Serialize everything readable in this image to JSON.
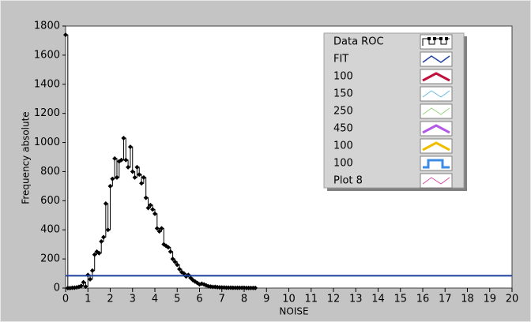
{
  "chart_data": {
    "type": "step",
    "xlabel": "NOISE",
    "ylabel": "Frequency absolute",
    "xlim": [
      0,
      20
    ],
    "xticks": [
      0,
      1,
      2,
      3,
      4,
      5,
      6,
      7,
      8,
      9,
      10,
      11,
      12,
      13,
      14,
      15,
      16,
      17,
      18,
      19,
      20
    ],
    "ylim": [
      0,
      1800
    ],
    "yticks": [
      0,
      200,
      400,
      600,
      800,
      1000,
      1200,
      1400,
      1600,
      1800
    ],
    "legend": "top-right",
    "series": [
      {
        "name": "Data ROC",
        "color": "#000000",
        "x": [
          0,
          0.1,
          0.2,
          0.3,
          0.4,
          0.5,
          0.6,
          0.7,
          0.8,
          0.9,
          1,
          1.1,
          1.2,
          1.3,
          1.4,
          1.5,
          1.6,
          1.7,
          1.8,
          1.9,
          2,
          2.1,
          2.2,
          2.3,
          2.4,
          2.5,
          2.6,
          2.7,
          2.8,
          2.9,
          3,
          3.1,
          3.2,
          3.3,
          3.4,
          3.5,
          3.6,
          3.7,
          3.8,
          3.9,
          4,
          4.1,
          4.2,
          4.3,
          4.4,
          4.5,
          4.6,
          4.7,
          4.8,
          4.9,
          5,
          5.1,
          5.2,
          5.3,
          5.4,
          5.5,
          5.6,
          5.7,
          5.8,
          5.9,
          6,
          6.1,
          6.2,
          6.3,
          6.4,
          6.5,
          6.6,
          6.7,
          6.8,
          6.9,
          7,
          7.1,
          7.2,
          7.3,
          7.4,
          7.5,
          7.6,
          7.7,
          7.8,
          7.9,
          8,
          8.1,
          8.2,
          8.3,
          8.4,
          8.5
        ],
        "values": [
          1740,
          0,
          0,
          2,
          3,
          5,
          8,
          15,
          40,
          10,
          90,
          60,
          120,
          230,
          250,
          240,
          320,
          350,
          580,
          400,
          700,
          750,
          890,
          760,
          870,
          880,
          1030,
          880,
          830,
          970,
          800,
          760,
          830,
          780,
          720,
          760,
          620,
          550,
          570,
          540,
          510,
          410,
          390,
          410,
          300,
          290,
          280,
          250,
          200,
          180,
          160,
          130,
          110,
          100,
          80,
          90,
          70,
          55,
          45,
          35,
          25,
          30,
          25,
          18,
          12,
          10,
          8,
          8,
          6,
          5,
          4,
          4,
          3,
          3,
          3,
          2,
          2,
          2,
          2,
          2,
          2,
          1,
          1,
          1,
          1,
          1
        ]
      },
      {
        "name": "FIT",
        "color": "#1f3f9f",
        "x": [
          0,
          20
        ],
        "values": [
          85,
          85
        ]
      },
      {
        "name": "100",
        "color": "#c0103c",
        "x": [],
        "values": []
      },
      {
        "name": "150",
        "color": "#5ab4e6",
        "x": [],
        "values": []
      },
      {
        "name": "250",
        "color": "#8cd26e",
        "x": [],
        "values": []
      },
      {
        "name": "450",
        "color": "#b45ae6",
        "x": [],
        "values": []
      },
      {
        "name": "100",
        "color": "#f0be00",
        "x": [],
        "values": []
      },
      {
        "name": "100",
        "color": "#3c8ce6",
        "x": [],
        "values": []
      },
      {
        "name": "Plot 8",
        "color": "#d23ca0",
        "x": [],
        "values": []
      }
    ]
  }
}
